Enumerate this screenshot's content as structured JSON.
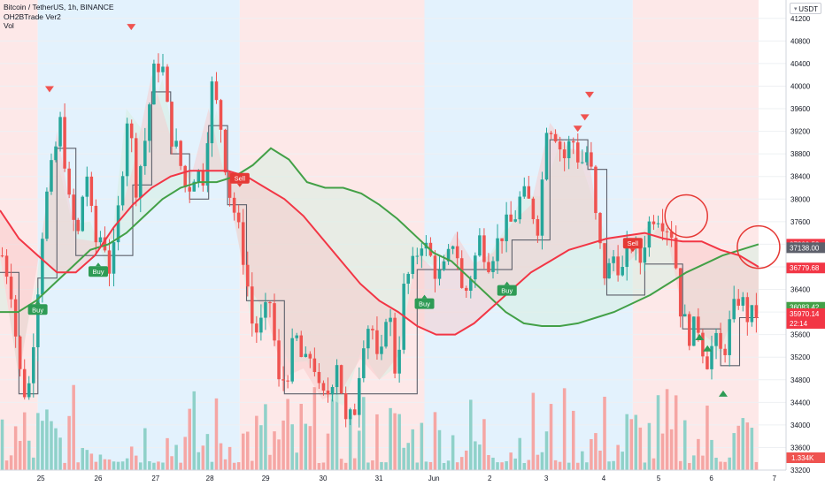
{
  "header": {
    "symbol": "Bitcoin / TetherUS, 1h, BINANCE",
    "indicator": "OH2BTrade Ver2",
    "volume_label": "Vol"
  },
  "currency": {
    "label": "USDT",
    "icon": "chevron-down-icon"
  },
  "colors": {
    "up": "#26a69a",
    "down": "#ef5350",
    "bull_bg": "#e3f2fd",
    "bear_bg": "#fde8e8",
    "green_line": "#43a047",
    "red_line": "#f23645",
    "step_line": "#5d606b",
    "green_fill": "#d7efe2",
    "red_fill": "#f9c5c5"
  },
  "chart_data": {
    "type": "candlestick",
    "symbol": "BTCUSDT",
    "interval": "1h",
    "exchange": "BINANCE",
    "ylim": [
      33200,
      41400
    ],
    "y_ticks": [
      33200,
      33600,
      34000,
      34400,
      34800,
      35200,
      35600,
      36000,
      36400,
      36800,
      37200,
      37600,
      38000,
      38400,
      38800,
      39200,
      39600,
      40000,
      40400,
      40800,
      41200
    ],
    "x_ticks": [
      "25",
      "26",
      "27",
      "28",
      "29",
      "30",
      "31",
      "Jun",
      "2",
      "3",
      "4",
      "5",
      "6",
      "7"
    ],
    "price_markers": [
      {
        "value": "37200.52",
        "role": "red line"
      },
      {
        "value": "37138.00",
        "role": "step line"
      },
      {
        "value": "36779.68",
        "role": "red line"
      },
      {
        "value": "36083.42",
        "role": "green line"
      },
      {
        "value": "35970.14",
        "role": "last price"
      },
      {
        "value": "22:14",
        "role": "countdown"
      }
    ],
    "volume_marker": "1.334K",
    "close_series": [
      37000,
      36500,
      35000,
      34400,
      36000,
      37800,
      38600,
      39400,
      37900,
      37300,
      38600,
      37200,
      37400,
      36600,
      38000,
      39600,
      38200,
      39000,
      40200,
      40500,
      39200,
      38800,
      38100,
      38500,
      38400,
      40000,
      39400,
      38200,
      37600,
      36800,
      35600,
      35800,
      36200,
      34700,
      34900,
      35600,
      35000,
      35300,
      34400,
      34600,
      35200,
      34000,
      34200,
      35500,
      35900,
      34800,
      36300,
      34800,
      36500,
      36800,
      37300,
      37000,
      36600,
      36800,
      37400,
      36200,
      36700,
      37300,
      36900,
      37200,
      37500,
      37600,
      38100,
      37900,
      37500,
      39400,
      39200,
      38700,
      39100,
      38600,
      38900,
      37400,
      36600,
      37000,
      36700,
      37300,
      36800,
      37500,
      37800,
      37600,
      37400,
      36000,
      35600,
      35800,
      35100,
      35500,
      35200,
      35900,
      36300,
      35900,
      35970
    ],
    "green_line": [
      36000,
      36000,
      36200,
      36500,
      36800,
      37100,
      37200,
      37400,
      37700,
      38000,
      38200,
      38300,
      38300,
      38400,
      38600,
      38900,
      38700,
      38300,
      38200,
      38200,
      38100,
      37900,
      37650,
      37350,
      37050,
      36900,
      36600,
      36300,
      36000,
      35800,
      35750,
      35750,
      35800,
      35900,
      36000,
      36150,
      36300,
      36500,
      36700,
      36850,
      37000,
      37100,
      37200
    ],
    "red_line": [
      37800,
      37300,
      37000,
      36700,
      36700,
      37000,
      37500,
      37900,
      38200,
      38400,
      38500,
      38500,
      38500,
      38400,
      38200,
      38000,
      37700,
      37300,
      36900,
      36500,
      36200,
      36000,
      35750,
      35600,
      35600,
      35800,
      36100,
      36400,
      36700,
      36900,
      37100,
      37200,
      37300,
      37350,
      37400,
      37300,
      37250,
      37250,
      37100,
      37000,
      36800
    ],
    "buy_signals": [
      {
        "label": "Buy",
        "date": "24"
      },
      {
        "label": "Buy",
        "date": "25"
      },
      {
        "label": "Buy",
        "date": "31"
      },
      {
        "label": "Buy",
        "date": "2"
      }
    ],
    "sell_signals": [
      {
        "label": "Sell",
        "date": "28"
      },
      {
        "label": "Sell",
        "date": "4"
      }
    ]
  }
}
